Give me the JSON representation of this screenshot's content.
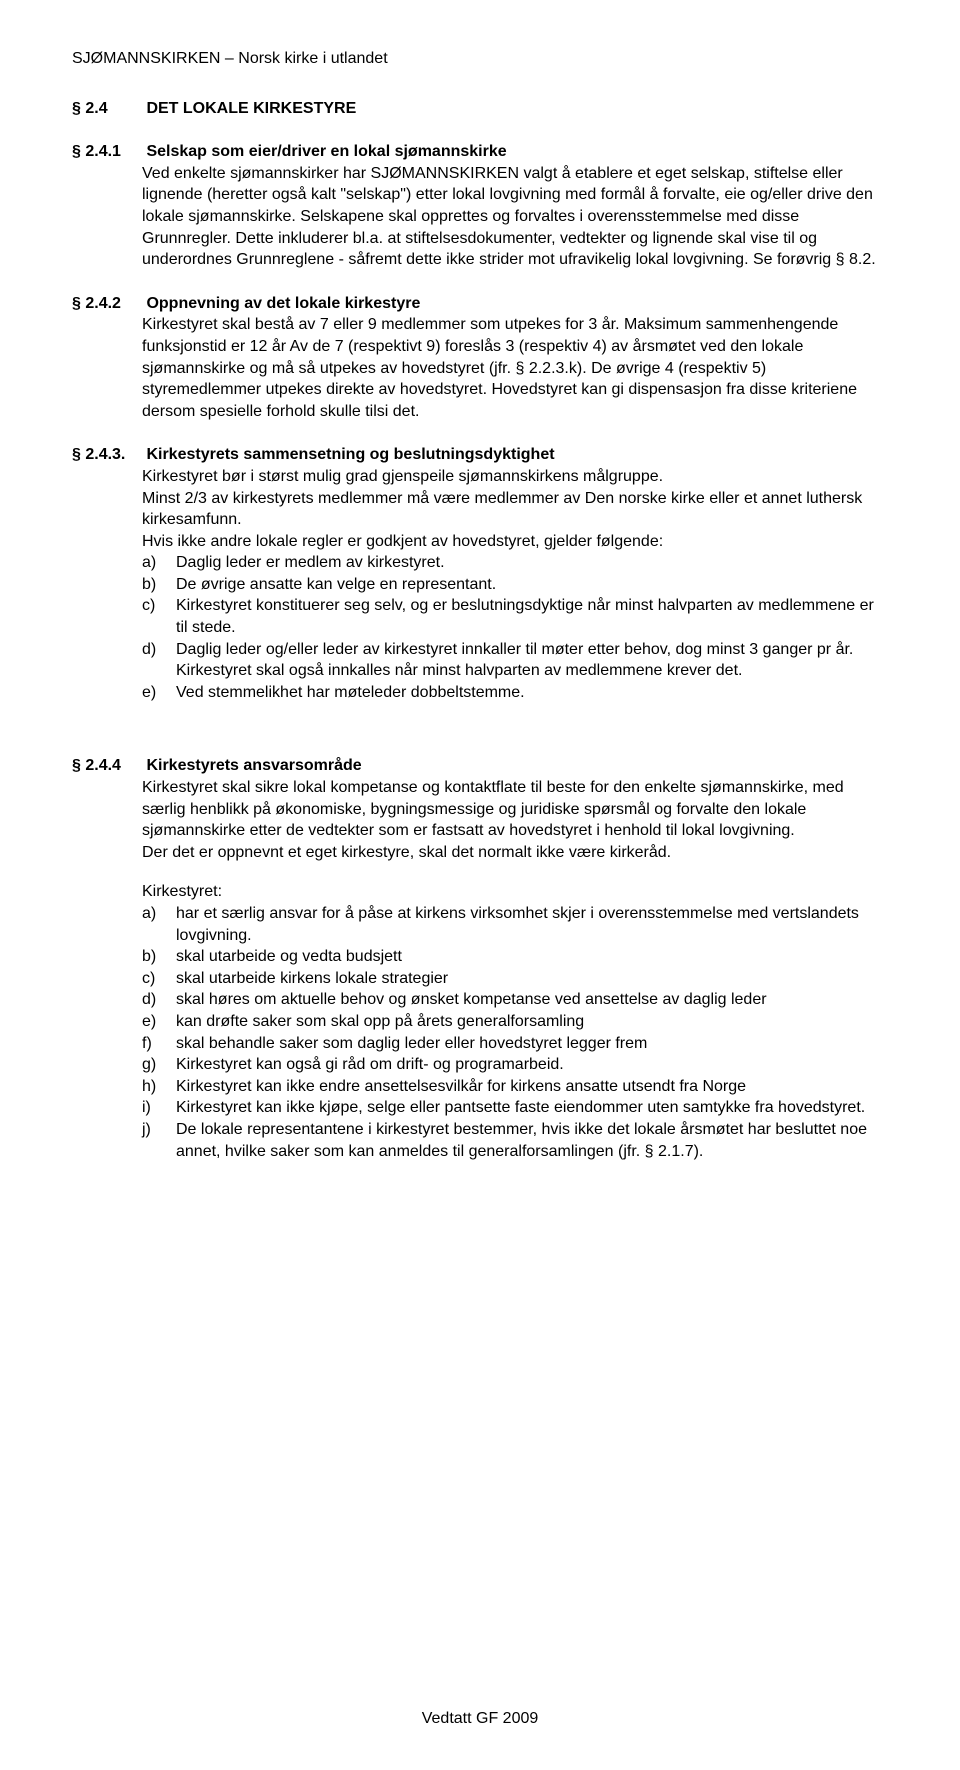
{
  "colors": {
    "text": "#000000",
    "background": "#ffffff"
  },
  "typography": {
    "body_font": "Arial",
    "body_size_pt": 12,
    "heading_weight": "bold"
  },
  "header": "SJØMANNSKIRKEN – Norsk kirke i utlandet",
  "footer": "Vedtatt GF 2009",
  "sections": {
    "s24": {
      "num": "§ 2.4",
      "title": "DET LOKALE KIRKESTYRE"
    },
    "s241": {
      "num": "§ 2.4.1",
      "title": "Selskap som eier/driver en lokal sjømannskirke",
      "body": "Ved enkelte sjømannskirker har SJØMANNSKIRKEN valgt å etablere et eget selskap, stiftelse eller lignende (heretter også kalt \"selskap\") etter lokal lovgivning med formål å forvalte, eie og/eller drive den lokale sjømannskirke. Selskapene skal opprettes og forvaltes i overensstemmelse med disse Grunnregler. Dette inkluderer bl.a. at stiftelsesdokumenter, vedtekter og lignende skal vise til og underordnes Grunnreglene - såfremt dette ikke strider mot ufravikelig lokal lovgivning. Se forøvrig § 8.2."
    },
    "s242": {
      "num": "§ 2.4.2",
      "title": "Oppnevning av det lokale kirkestyre",
      "body": "Kirkestyret skal bestå av 7 eller 9 medlemmer som utpekes for 3 år. Maksimum sammenhengende funksjonstid er 12 år Av de 7 (respektivt 9) foreslås 3 (respektiv 4) av årsmøtet ved den lokale sjømannskirke og må så utpekes av hovedstyret (jfr. § 2.2.3.k). De øvrige 4 (respektiv 5) styremedlemmer utpekes direkte av hovedstyret. Hovedstyret kan gi dispensasjon fra disse kriteriene dersom spesielle forhold skulle tilsi det."
    },
    "s243": {
      "num": "§ 2.4.3.",
      "title": "Kirkestyrets sammensetning og beslutningsdyktighet",
      "body_lines": [
        "Kirkestyret bør i størst mulig grad gjenspeile sjømannskirkens målgruppe.",
        "Minst 2/3 av kirkestyrets medlemmer må være medlemmer av Den norske kirke eller et annet luthersk kirkesamfunn.",
        "Hvis ikke andre lokale regler er godkjent av hovedstyret, gjelder følgende:"
      ],
      "items": [
        {
          "m": "a)",
          "t": "Daglig leder er medlem av kirkestyret."
        },
        {
          "m": "b)",
          "t": "De øvrige ansatte kan velge en representant."
        },
        {
          "m": "c)",
          "t": "Kirkestyret konstituerer seg selv, og er beslutningsdyktige når minst halvparten av medlemmene er til stede."
        },
        {
          "m": "d)",
          "t": "Daglig leder og/eller leder av kirkestyret innkaller til møter etter behov, dog minst 3 ganger pr år. Kirkestyret skal også innkalles når minst halvparten av medlemmene krever det."
        },
        {
          "m": "e)",
          "t": "Ved stemmelikhet har møteleder dobbeltstemme."
        }
      ]
    },
    "s244": {
      "num": "§ 2.4.4",
      "title": "Kirkestyrets ansvarsområde",
      "body": "Kirkestyret skal sikre lokal kompetanse og kontaktflate til beste for den enkelte sjømannskirke, med særlig henblikk på økonomiske, bygningsmessige og juridiske spørsmål og forvalte den          lokale sjømannskirke etter de vedtekter som er fastsatt av hovedstyret i henhold til lokal          lovgivning.",
      "body2": "Der det er oppnevnt et eget kirkestyre, skal det normalt ikke være kirkeråd.",
      "intro2": "Kirkestyret:",
      "items": [
        {
          "m": "a)",
          "t": "har et særlig ansvar for å påse at kirkens virksomhet skjer i overensstemmelse med vertslandets lovgivning."
        },
        {
          "m": "b)",
          "t": "skal utarbeide og vedta budsjett"
        },
        {
          "m": "c)",
          "t": "skal utarbeide kirkens lokale strategier"
        },
        {
          "m": "d)",
          "t": "skal høres om aktuelle behov og ønsket kompetanse ved ansettelse av daglig leder"
        },
        {
          "m": "e)",
          "t": "kan drøfte saker som skal opp på årets generalforsamling"
        },
        {
          "m": "f)",
          "t": "skal behandle saker som daglig leder eller hovedstyret legger frem"
        },
        {
          "m": "g)",
          "t": "Kirkestyret kan også gi råd om drift- og programarbeid."
        },
        {
          "m": "h)",
          "t": "Kirkestyret kan ikke endre ansettelsesvilkår for kirkens ansatte utsendt fra Norge"
        },
        {
          "m": "i)",
          "t": "Kirkestyret kan ikke kjøpe, selge eller pantsette faste eiendommer uten samtykke fra hovedstyret."
        },
        {
          "m": "j)",
          "t": "De lokale representantene i kirkestyret bestemmer, hvis ikke det lokale årsmøtet har besluttet noe annet, hvilke saker som kan anmeldes til generalforsamlingen (jfr. § 2.1.7)."
        }
      ]
    }
  }
}
